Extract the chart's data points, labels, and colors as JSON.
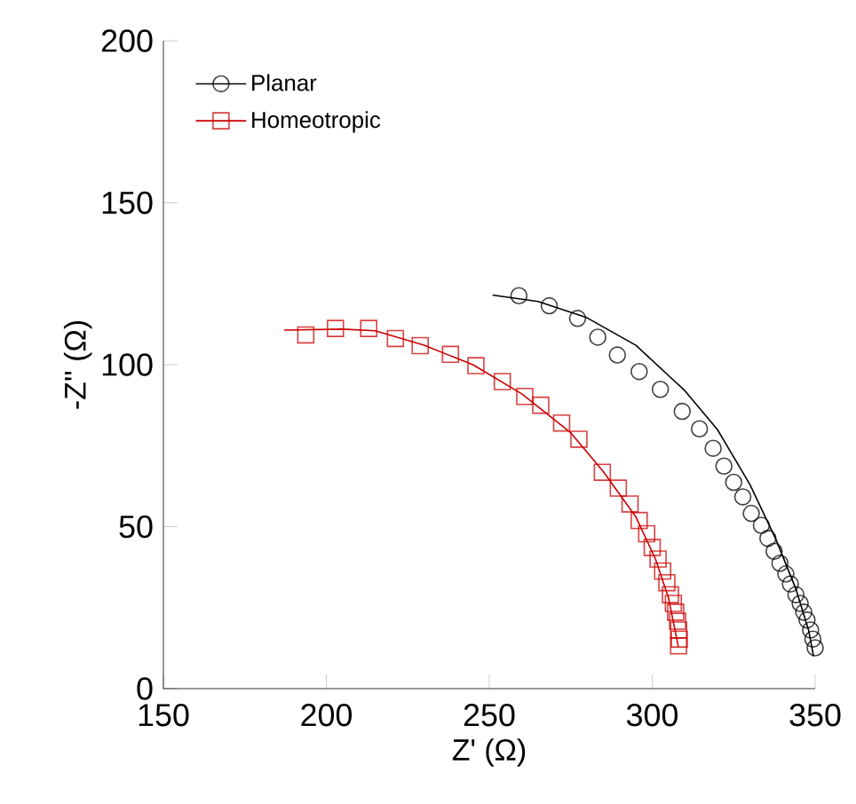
{
  "chart_data": {
    "type": "scatter",
    "xlabel": "Z' (Ω)",
    "ylabel": "-Z'' (Ω)",
    "xlim": [
      150,
      350
    ],
    "xticks": [
      150,
      200,
      250,
      300,
      350
    ],
    "ylim": [
      0,
      200
    ],
    "yticks": [
      0,
      50,
      100,
      150,
      200
    ],
    "legend": "top left",
    "grid": false,
    "series": [
      {
        "name": "Planar",
        "type": "scatter",
        "marker": "circle",
        "color": "#000000",
        "x": [
          259.1,
          268.4,
          277.1,
          283.3,
          289.3,
          296.0,
          302.5,
          309.2,
          314.5,
          318.7,
          322.0,
          325.0,
          327.8,
          330.4,
          333.5,
          335.5,
          337.4,
          339.2,
          341.0,
          342.4,
          344.1,
          345.4,
          346.5,
          347.5,
          348.6,
          349.3,
          350.0
        ],
        "values": [
          121.3,
          118.2,
          114.3,
          108.5,
          103.0,
          97.9,
          92.4,
          85.6,
          80.2,
          74.2,
          68.7,
          63.7,
          59.2,
          54.1,
          50.4,
          46.4,
          42.4,
          38.7,
          35.4,
          32.3,
          29.0,
          26.3,
          23.6,
          21.2,
          18.1,
          15.3,
          12.6
        ]
      },
      {
        "name": "Homeotropic",
        "type": "scatter",
        "marker": "square",
        "color": "#cc0000",
        "x": [
          193.7,
          202.8,
          213.0,
          221.2,
          228.8,
          238.1,
          245.9,
          254.0,
          260.9,
          265.8,
          272.2,
          277.5,
          284.7,
          289.6,
          293.2,
          296.0,
          298.3,
          300.0,
          301.8,
          303.2,
          304.5,
          305.6,
          306.5,
          307.2,
          307.8,
          308.1,
          308.3,
          308.1
        ],
        "values": [
          109.2,
          111.2,
          111.2,
          108.1,
          105.9,
          103.2,
          99.7,
          94.8,
          90.2,
          87.5,
          82.0,
          77.0,
          66.8,
          61.9,
          57.0,
          51.9,
          47.8,
          43.6,
          40.0,
          36.3,
          32.7,
          29.0,
          26.3,
          23.6,
          20.8,
          18.1,
          15.3,
          13.2
        ]
      },
      {
        "type": "line",
        "marker": "none",
        "color": "#000000",
        "x": [
          251,
          265,
          280,
          295,
          310,
          320,
          330,
          338,
          344,
          348,
          349.5
        ],
        "values": [
          121.5,
          119.5,
          114.5,
          106,
          92,
          80,
          63,
          46,
          31,
          18,
          10
        ]
      },
      {
        "type": "line",
        "marker": "none",
        "color": "#cc0000",
        "x": [
          187,
          205,
          215,
          230,
          245,
          260,
          275,
          285,
          295,
          301,
          305,
          307,
          308
        ],
        "values": [
          110.7,
          111,
          110.5,
          106,
          100,
          91,
          79,
          67,
          53,
          40,
          28,
          18,
          13
        ]
      }
    ]
  }
}
